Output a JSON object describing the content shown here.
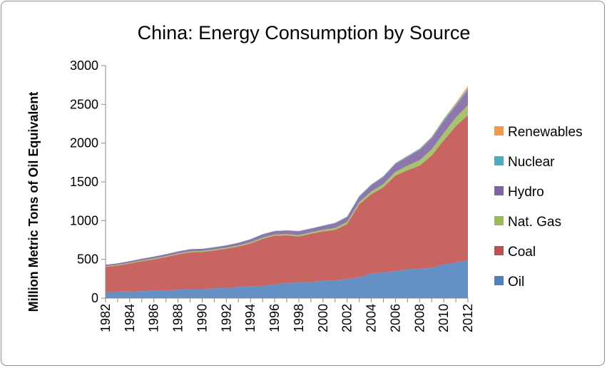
{
  "chart_data": {
    "type": "area",
    "stacked": true,
    "title": "China: Energy Consumption by Source",
    "xlabel": "",
    "ylabel": "Million Metric Tons of Oil Equivalent",
    "ylim": [
      0,
      3000
    ],
    "yticks": [
      "0",
      "500",
      "1000",
      "1500",
      "2000",
      "2500",
      "3000"
    ],
    "xticks": [
      "1982",
      "1984",
      "1986",
      "1988",
      "1990",
      "1992",
      "1994",
      "1996",
      "1998",
      "2000",
      "2002",
      "2004",
      "2006",
      "2008",
      "2010",
      "2012"
    ],
    "grid": false,
    "legend_position": "right",
    "x": [
      1982,
      1983,
      1984,
      1985,
      1986,
      1987,
      1988,
      1989,
      1990,
      1991,
      1992,
      1993,
      1994,
      1995,
      1996,
      1997,
      1998,
      1999,
      2000,
      2001,
      2002,
      2003,
      2004,
      2005,
      2006,
      2007,
      2008,
      2009,
      2010,
      2011,
      2012
    ],
    "series": [
      {
        "name": "Oil",
        "color": "#4f81bd",
        "values": [
          82,
          84,
          86,
          90,
          95,
          100,
          108,
          115,
          115,
          125,
          132,
          145,
          150,
          160,
          175,
          195,
          200,
          210,
          225,
          230,
          245,
          270,
          320,
          330,
          350,
          370,
          380,
          390,
          435,
          460,
          485
        ]
      },
      {
        "name": "Coal",
        "color": "#c0504d",
        "values": [
          320,
          335,
          360,
          385,
          405,
          430,
          455,
          475,
          480,
          490,
          505,
          520,
          555,
          605,
          630,
          615,
          595,
          620,
          635,
          650,
          710,
          940,
          1020,
          1100,
          1230,
          1280,
          1330,
          1450,
          1600,
          1760,
          1875
        ]
      },
      {
        "name": "Nat. Gas",
        "color": "#9bbb59",
        "values": [
          10,
          10,
          10,
          11,
          12,
          12,
          13,
          13,
          13,
          14,
          14,
          15,
          15,
          16,
          16,
          17,
          18,
          19,
          22,
          25,
          27,
          30,
          36,
          42,
          50,
          60,
          70,
          80,
          95,
          110,
          130
        ]
      },
      {
        "name": "Hydro",
        "color": "#8064a2",
        "values": [
          18,
          20,
          22,
          23,
          24,
          25,
          27,
          28,
          28,
          28,
          30,
          34,
          38,
          42,
          43,
          45,
          50,
          48,
          50,
          62,
          65,
          68,
          80,
          90,
          100,
          110,
          130,
          140,
          155,
          150,
          195
        ]
      },
      {
        "name": "Nuclear",
        "color": "#4bacc6",
        "values": [
          0,
          0,
          0,
          0,
          0,
          0,
          0,
          0,
          0,
          0,
          0,
          0,
          3,
          3,
          3,
          3,
          3,
          3,
          4,
          4,
          6,
          10,
          11,
          12,
          12,
          14,
          15,
          16,
          17,
          20,
          22
        ]
      },
      {
        "name": "Renewables",
        "color": "#f79646",
        "values": [
          0,
          0,
          0,
          0,
          0,
          0,
          0,
          0,
          0,
          0,
          0,
          0,
          0,
          0,
          0,
          0,
          0,
          0,
          0,
          1,
          1,
          1,
          2,
          2,
          3,
          4,
          5,
          7,
          12,
          20,
          30
        ]
      }
    ]
  }
}
